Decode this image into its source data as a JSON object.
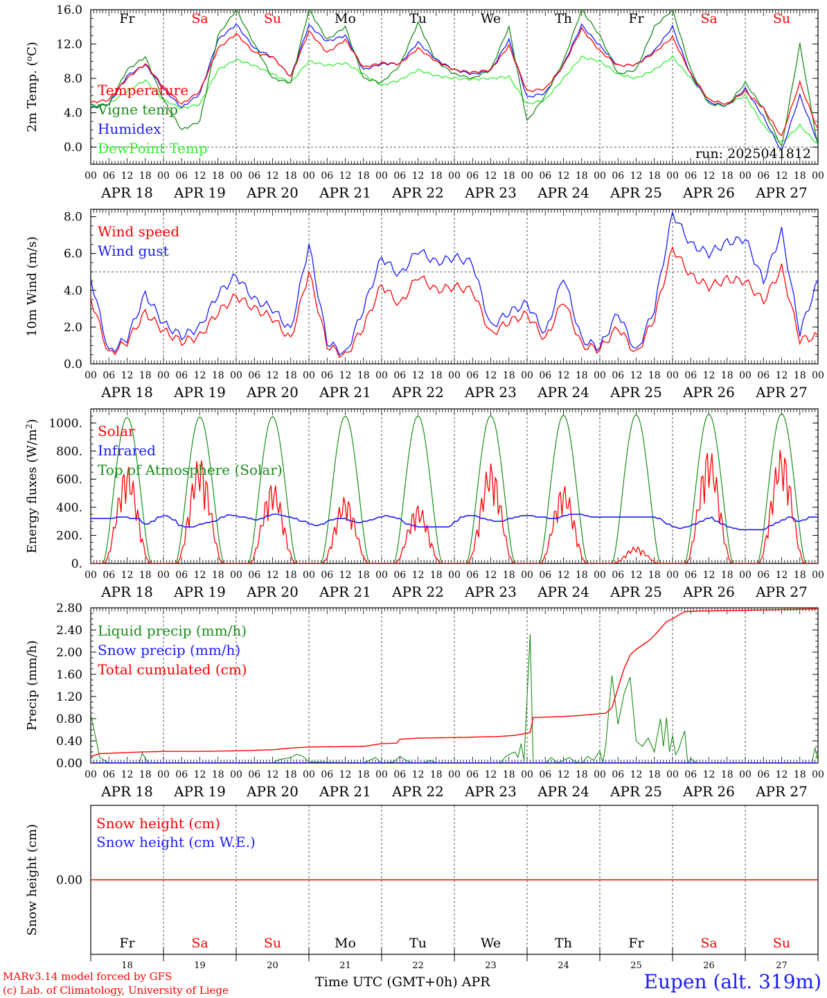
{
  "colors": {
    "red": "#ff0000",
    "darkgreen": "#1a8c1a",
    "lightgreen": "#33ee33",
    "blue": "#1a1aff",
    "black": "#000000"
  },
  "days": [
    "APR 18",
    "APR 19",
    "APR 20",
    "APR 21",
    "APR 22",
    "APR 23",
    "APR 24",
    "APR 25",
    "APR 26",
    "APR 27"
  ],
  "day_numbers": [
    "18",
    "19",
    "20",
    "21",
    "22",
    "23",
    "24",
    "25",
    "26",
    "27"
  ],
  "weekdays": [
    {
      "label": "Fr",
      "weekend": false
    },
    {
      "label": "Sa",
      "weekend": true
    },
    {
      "label": "Su",
      "weekend": true
    },
    {
      "label": "Mo",
      "weekend": false
    },
    {
      "label": "Tu",
      "weekend": false
    },
    {
      "label": "We",
      "weekend": false
    },
    {
      "label": "Th",
      "weekend": false
    },
    {
      "label": "Fr",
      "weekend": false
    },
    {
      "label": "Sa",
      "weekend": true
    },
    {
      "label": "Su",
      "weekend": true
    }
  ],
  "hour_labels": [
    "00",
    "06",
    "12",
    "18"
  ],
  "footer": {
    "model": "MARv3.14 model forced by GFS",
    "credit": "(c) Lab. of Climatology, University of Liege",
    "xlabel": "Time UTC (GMT+0h) APR",
    "station": "Eupen (alt. 319m)"
  },
  "chart_data": [
    {
      "type": "line",
      "ylabel": "2m Temp. (°C)",
      "ylim": [
        -2,
        16
      ],
      "yticks": [
        "0.0",
        "4.0",
        "8.0",
        "12.0",
        "16.0"
      ],
      "ytick_values": [
        0,
        4,
        8,
        12,
        16
      ],
      "note": "run: 2025041812",
      "show_weekdays": true,
      "x_hours": [
        0,
        6,
        12,
        18,
        24,
        30,
        36,
        42,
        48,
        54,
        60,
        66,
        72,
        78,
        84,
        90,
        96,
        102,
        108,
        114,
        120,
        126,
        132,
        138,
        144,
        150,
        156,
        162,
        168,
        174,
        180,
        186,
        192,
        198,
        204,
        210,
        216,
        222,
        228,
        234,
        240
      ],
      "series": [
        {
          "name": "Temperature",
          "color": "red",
          "values": [
            5.2,
            5.5,
            8.0,
            9.7,
            7.0,
            5.0,
            6.5,
            11.5,
            13.2,
            11.0,
            10.5,
            8.2,
            13.5,
            11.0,
            12.5,
            9.3,
            9.8,
            9.7,
            11.5,
            10.0,
            9.0,
            8.7,
            9.0,
            11.8,
            6.5,
            6.8,
            9.5,
            13.8,
            11.2,
            9.5,
            9.6,
            11.0,
            12.8,
            8.5,
            5.5,
            5.0,
            6.5,
            4.5,
            1.2,
            7.5,
            2.0
          ]
        },
        {
          "name": "Vigne temp",
          "color": "darkgreen",
          "values": [
            4.5,
            5.0,
            9.0,
            10.5,
            5.5,
            2.0,
            3.0,
            13.0,
            16.0,
            12.0,
            8.0,
            7.5,
            16.0,
            12.5,
            14.0,
            8.0,
            7.5,
            9.5,
            14.5,
            10.0,
            8.5,
            8.0,
            9.0,
            14.0,
            3.0,
            6.0,
            10.0,
            16.0,
            13.0,
            8.5,
            9.0,
            14.0,
            16.0,
            9.0,
            5.0,
            4.8,
            7.5,
            4.5,
            0.0,
            12.0,
            0.0
          ]
        },
        {
          "name": "Humidex",
          "color": "blue",
          "values": [
            4.6,
            5.0,
            8.3,
            9.6,
            6.8,
            4.6,
            6.2,
            12.5,
            14.3,
            11.5,
            10.5,
            8.2,
            14.2,
            12.3,
            13.0,
            9.0,
            9.7,
            9.7,
            12.2,
            10.2,
            9.0,
            8.5,
            8.9,
            12.5,
            5.8,
            6.3,
            9.6,
            14.2,
            11.8,
            9.5,
            9.6,
            11.2,
            14.0,
            8.4,
            5.2,
            4.8,
            6.8,
            3.5,
            -0.5,
            6.0,
            0.5
          ]
        },
        {
          "name": "DewPoint Temp",
          "color": "lightgreen",
          "values": [
            4.8,
            5.0,
            6.5,
            7.8,
            5.5,
            4.5,
            5.0,
            9.0,
            10.2,
            9.5,
            8.5,
            7.5,
            10.0,
            9.5,
            9.8,
            8.5,
            7.2,
            7.8,
            9.0,
            8.3,
            8.0,
            7.9,
            8.0,
            8.2,
            5.0,
            5.5,
            8.0,
            10.5,
            10.0,
            8.5,
            8.0,
            9.0,
            10.5,
            8.0,
            5.5,
            5.0,
            6.0,
            2.5,
            0.5,
            2.5,
            0.3
          ]
        }
      ]
    },
    {
      "type": "line",
      "ylabel": "10m Wind (m/s)",
      "ylim": [
        0,
        8.4
      ],
      "yticks": [
        "0.0",
        "2.0",
        "4.0",
        "6.0",
        "8.0"
      ],
      "ytick_values": [
        0,
        2,
        4,
        6,
        8
      ],
      "dashed_line": 5,
      "x_hours": [
        0,
        6,
        12,
        18,
        24,
        30,
        36,
        42,
        48,
        54,
        60,
        66,
        72,
        78,
        84,
        90,
        96,
        102,
        108,
        114,
        120,
        126,
        132,
        138,
        144,
        150,
        156,
        162,
        168,
        174,
        180,
        186,
        192,
        198,
        204,
        210,
        216,
        222,
        228,
        234,
        240
      ],
      "series": [
        {
          "name": "Wind speed",
          "color": "red",
          "values": [
            3.6,
            0.5,
            1.2,
            2.8,
            1.8,
            1.2,
            1.5,
            2.8,
            3.7,
            3.0,
            2.5,
            1.3,
            5.0,
            1.0,
            0.4,
            2.0,
            4.3,
            3.2,
            4.8,
            4.0,
            4.2,
            4.0,
            1.6,
            2.3,
            2.7,
            1.3,
            3.5,
            1.0,
            0.8,
            2.0,
            0.5,
            2.5,
            6.3,
            4.8,
            4.2,
            4.6,
            4.5,
            3.4,
            5.2,
            1.3,
            1.5
          ]
        },
        {
          "name": "Wind gust",
          "color": "blue",
          "values": [
            4.7,
            0.6,
            1.4,
            3.8,
            2.2,
            1.5,
            2.0,
            3.8,
            4.8,
            3.5,
            3.0,
            1.8,
            6.5,
            1.2,
            0.5,
            3.0,
            5.8,
            4.8,
            6.2,
            5.5,
            5.8,
            5.5,
            2.0,
            2.8,
            3.3,
            1.6,
            4.8,
            1.3,
            0.9,
            2.8,
            0.6,
            3.0,
            8.2,
            6.5,
            6.0,
            6.6,
            6.8,
            4.5,
            7.2,
            1.7,
            4.5
          ]
        }
      ]
    },
    {
      "type": "line",
      "ylabel": "Energy fluxes (W/m²)",
      "ylim": [
        0,
        1100
      ],
      "yticks": [
        "0.",
        "200.",
        "400.",
        "600.",
        "800.",
        "1000."
      ],
      "ytick_values": [
        0,
        200,
        400,
        600,
        800,
        1000
      ],
      "day_peaks": {
        "toa": [
          1040,
          1042,
          1045,
          1048,
          1050,
          1052,
          1055,
          1058,
          1062,
          1066
        ],
        "solar": [
          700,
          760,
          580,
          480,
          420,
          720,
          560,
          120,
          820,
          820
        ]
      },
      "infrared_hourly": [
        320,
        320,
        320,
        320,
        325,
        330,
        330,
        320,
        320,
        290,
        280,
        300,
        330,
        340,
        330,
        310,
        270,
        260,
        260,
        270,
        280,
        290,
        300,
        310,
        330,
        345,
        340,
        330,
        330,
        320,
        310,
        320,
        340,
        350,
        350,
        340,
        330,
        320,
        300,
        300,
        280,
        270,
        280,
        300,
        310,
        320,
        320,
        310,
        300,
        290,
        300,
        310,
        320,
        330,
        340,
        330,
        320,
        300,
        280,
        270,
        260,
        260,
        260,
        260,
        260,
        260,
        270,
        300,
        330,
        340,
        340,
        330,
        320,
        310,
        300,
        300,
        310,
        320,
        330,
        340,
        340,
        340,
        330,
        330,
        320,
        320,
        330,
        340,
        350,
        350,
        350,
        340,
        330,
        330,
        330,
        330,
        330,
        330,
        330,
        330,
        330,
        330,
        330,
        330,
        320,
        300,
        280,
        260,
        250,
        260,
        270,
        280,
        300,
        320,
        330,
        300,
        280,
        260,
        250,
        240,
        240,
        240,
        240,
        240,
        250,
        270,
        290,
        310,
        330,
        320,
        300,
        310,
        330,
        330
      ],
      "series": [
        {
          "name": "Solar",
          "color": "red"
        },
        {
          "name": "Infrared",
          "color": "blue"
        },
        {
          "name": "Top of Atmosphere (Solar)",
          "color": "darkgreen"
        }
      ]
    },
    {
      "type": "line",
      "ylabel": "Precip (mm/h)",
      "ylim": [
        0,
        2.8
      ],
      "yticks": [
        "0.00",
        "0.40",
        "0.80",
        "1.20",
        "1.60",
        "2.00",
        "2.40",
        "2.80"
      ],
      "ytick_values": [
        0,
        0.4,
        0.8,
        1.2,
        1.6,
        2.0,
        2.4,
        2.8
      ],
      "liquid_points": [
        [
          0,
          0.88
        ],
        [
          3,
          0.1
        ],
        [
          6,
          0.0
        ],
        [
          16,
          0.0
        ],
        [
          17,
          0.18
        ],
        [
          19,
          0.0
        ],
        [
          60,
          0.0
        ],
        [
          62,
          0.06
        ],
        [
          66,
          0.1
        ],
        [
          68,
          0.16
        ],
        [
          70,
          0.12
        ],
        [
          72,
          0.02
        ],
        [
          90,
          0.0
        ],
        [
          92,
          0.05
        ],
        [
          94,
          0.1
        ],
        [
          96,
          0.0
        ],
        [
          100,
          0.02
        ],
        [
          102,
          0.12
        ],
        [
          104,
          0.05
        ],
        [
          106,
          0.0
        ],
        [
          110,
          0.0
        ],
        [
          112,
          0.05
        ],
        [
          114,
          0.0
        ],
        [
          135,
          0.0
        ],
        [
          137,
          0.12
        ],
        [
          139,
          0.18
        ],
        [
          140,
          0.2
        ],
        [
          141,
          0.1
        ],
        [
          142,
          0.35
        ],
        [
          143,
          0.05
        ],
        [
          145,
          2.33
        ],
        [
          146,
          0.0
        ],
        [
          150,
          0.0
        ],
        [
          152,
          0.1
        ],
        [
          154,
          0.0
        ],
        [
          158,
          0.1
        ],
        [
          160,
          0.02
        ],
        [
          162,
          0.0
        ],
        [
          164,
          0.12
        ],
        [
          166,
          0.05
        ],
        [
          168,
          0.22
        ],
        [
          169,
          0.0
        ],
        [
          170,
          0.35
        ],
        [
          172,
          1.58
        ],
        [
          174,
          0.7
        ],
        [
          176,
          1.25
        ],
        [
          178,
          1.55
        ],
        [
          180,
          0.4
        ],
        [
          182,
          0.3
        ],
        [
          184,
          0.45
        ],
        [
          186,
          0.2
        ],
        [
          188,
          0.8
        ],
        [
          189,
          0.3
        ],
        [
          190,
          0.82
        ],
        [
          191,
          0.2
        ],
        [
          192,
          0.5
        ],
        [
          193,
          0.15
        ],
        [
          194,
          0.25
        ],
        [
          196,
          0.58
        ],
        [
          197,
          0.0
        ],
        [
          198,
          0.08
        ],
        [
          200,
          0.0
        ],
        [
          238,
          0.0
        ],
        [
          239,
          0.28
        ],
        [
          240,
          0.05
        ]
      ],
      "cumulated_points": [
        [
          0,
          0.12
        ],
        [
          3,
          0.17
        ],
        [
          12,
          0.19
        ],
        [
          17,
          0.2
        ],
        [
          24,
          0.21
        ],
        [
          36,
          0.21
        ],
        [
          48,
          0.22
        ],
        [
          60,
          0.24
        ],
        [
          66,
          0.27
        ],
        [
          72,
          0.29
        ],
        [
          90,
          0.3
        ],
        [
          96,
          0.35
        ],
        [
          101,
          0.36
        ],
        [
          102,
          0.43
        ],
        [
          108,
          0.45
        ],
        [
          120,
          0.46
        ],
        [
          135,
          0.48
        ],
        [
          140,
          0.5
        ],
        [
          145,
          0.55
        ],
        [
          146,
          0.82
        ],
        [
          156,
          0.84
        ],
        [
          162,
          0.86
        ],
        [
          170,
          0.9
        ],
        [
          172,
          1.0
        ],
        [
          174,
          1.35
        ],
        [
          176,
          1.7
        ],
        [
          178,
          1.95
        ],
        [
          180,
          2.05
        ],
        [
          184,
          2.2
        ],
        [
          186,
          2.3
        ],
        [
          190,
          2.55
        ],
        [
          192,
          2.6
        ],
        [
          194,
          2.67
        ],
        [
          196,
          2.73
        ],
        [
          200,
          2.74
        ],
        [
          240,
          2.78
        ]
      ],
      "series": [
        {
          "name": "Liquid precip (mm/h)",
          "color": "darkgreen"
        },
        {
          "name": "Snow precip (mm/h)",
          "color": "blue"
        },
        {
          "name": "Total cumulated (cm)",
          "color": "red"
        }
      ]
    },
    {
      "type": "line",
      "ylabel": "Snow height (cm)",
      "ylim": [
        -1,
        1
      ],
      "yticks": [
        "0.00"
      ],
      "ytick_values": [
        0
      ],
      "show_weekdays": true,
      "series": [
        {
          "name": "Snow height (cm)",
          "color": "red",
          "values": [
            0,
            0
          ]
        },
        {
          "name": "Snow height (cm W.E.)",
          "color": "blue",
          "values": [
            0,
            0
          ]
        }
      ]
    }
  ]
}
